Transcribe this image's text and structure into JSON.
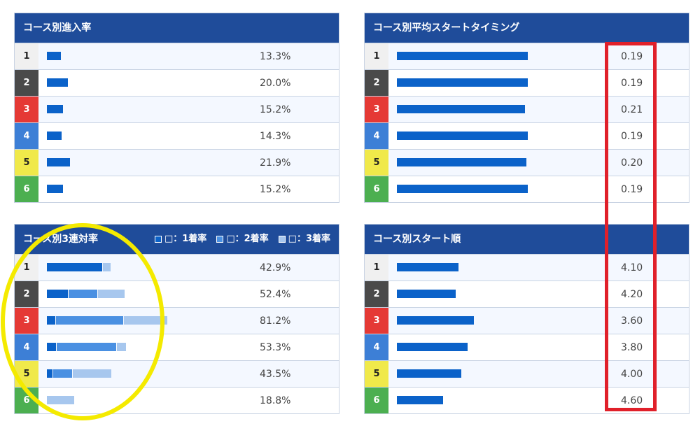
{
  "colors": {
    "header_bg": "#1f4c9a",
    "bar_main": "#0b62c9",
    "bar_2nd": "#4a90e2",
    "bar_3rd": "#a7c7ee",
    "highlight_rect": "#e0202a",
    "highlight_circle": "#f4ea00"
  },
  "lanes": [
    {
      "num": "1",
      "bg": "#f0f0f0",
      "fg": "#222"
    },
    {
      "num": "2",
      "bg": "#4a4a4a",
      "fg": "#fff"
    },
    {
      "num": "3",
      "bg": "#e53935",
      "fg": "#fff"
    },
    {
      "num": "4",
      "bg": "#3d7fd6",
      "fg": "#fff"
    },
    {
      "num": "5",
      "bg": "#f0e94a",
      "fg": "#222"
    },
    {
      "num": "6",
      "bg": "#4caf50",
      "fg": "#fff"
    }
  ],
  "chart_data": [
    {
      "id": "entry",
      "type": "bar",
      "title": "コース別進入率",
      "categories": [
        "1",
        "2",
        "3",
        "4",
        "5",
        "6"
      ],
      "values": [
        13.3,
        20.0,
        15.2,
        14.3,
        21.9,
        15.2
      ],
      "value_labels": [
        "13.3%",
        "20.0%",
        "15.2%",
        "14.3%",
        "21.9%",
        "15.2%"
      ],
      "xlim": [
        0,
        100
      ]
    },
    {
      "id": "avg_st",
      "type": "bar",
      "title": "コース別平均スタートタイミング",
      "categories": [
        "1",
        "2",
        "3",
        "4",
        "5",
        "6"
      ],
      "values": [
        0.19,
        0.19,
        0.21,
        0.19,
        0.2,
        0.19
      ],
      "value_labels": [
        "0.19",
        "0.19",
        "0.21",
        "0.19",
        "0.20",
        "0.19"
      ],
      "bar_fraction": [
        0.85,
        0.85,
        0.83,
        0.85,
        0.84,
        0.85
      ]
    },
    {
      "id": "rentai",
      "type": "bar",
      "title": "コース別3連対率",
      "legend": [
        "□：1着率",
        "□：2着率",
        "□：3着率"
      ],
      "legend_position": "top-right",
      "categories": [
        "1",
        "2",
        "3",
        "4",
        "5",
        "6"
      ],
      "series": [
        {
          "name": "1着率",
          "values": [
            37.5,
            14.6,
            6.1,
            6.7,
            4.4,
            0.0
          ]
        },
        {
          "name": "2着率",
          "values": [
            0.0,
            19.5,
            45.5,
            40.0,
            13.0,
            0.0
          ]
        },
        {
          "name": "3着率",
          "values": [
            5.4,
            18.3,
            29.6,
            6.6,
            26.1,
            18.8
          ]
        }
      ],
      "value_labels": [
        "42.9%",
        "52.4%",
        "81.2%",
        "53.3%",
        "43.5%",
        "18.8%"
      ],
      "xlim": [
        0,
        100
      ]
    },
    {
      "id": "start_order",
      "type": "bar",
      "title": "コース別スタート順",
      "categories": [
        "1",
        "2",
        "3",
        "4",
        "5",
        "6"
      ],
      "values": [
        4.1,
        4.2,
        3.6,
        3.8,
        4.0,
        4.6
      ],
      "value_labels": [
        "4.10",
        "4.20",
        "3.60",
        "3.80",
        "4.00",
        "4.60"
      ],
      "bar_fraction": [
        0.4,
        0.38,
        0.5,
        0.46,
        0.42,
        0.3
      ]
    }
  ]
}
